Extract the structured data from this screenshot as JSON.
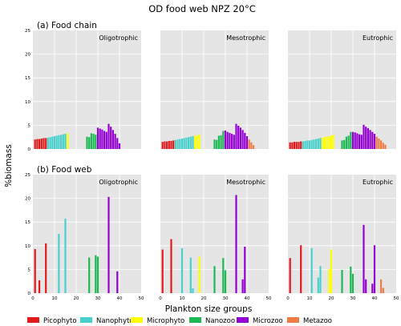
{
  "figure": {
    "title": "OD food web NPZ 20°C",
    "ylabel": "%biomass",
    "xlabel": "Plankton size groups"
  },
  "colors": {
    "Picophyto": "#e31a1c",
    "Nanophyto": "#48d1cc",
    "Microphyto": "#ffff00",
    "Nanozoo": "#1db954",
    "Microzoo": "#9400d3",
    "Metazoo": "#ef7b45"
  },
  "legend": [
    "Picophyto",
    "Nanophyto",
    "Microphyto",
    "Nanozoo",
    "Microzoo",
    "Metazoo"
  ],
  "rows": [
    {
      "label": "(a) Food chain",
      "show_x_ticks": false
    },
    {
      "label": "(b) Food web",
      "show_x_ticks": true
    }
  ],
  "chart_data": [
    {
      "type": "bar",
      "row": 0,
      "col": 0,
      "panel_title": "Oligotrophic",
      "xlim": [
        0,
        50
      ],
      "ylim": [
        0,
        25
      ],
      "yticks": [
        0,
        5,
        10,
        15,
        20,
        25
      ],
      "xticks": [
        0,
        10,
        20,
        30,
        40,
        50
      ],
      "series": [
        {
          "name": "Picophyto",
          "x": [
            1,
            2,
            3,
            4,
            5,
            6
          ],
          "values": [
            2.0,
            2.1,
            2.1,
            2.2,
            2.3,
            2.3
          ]
        },
        {
          "name": "Nanophyto",
          "x": [
            7,
            8,
            9,
            10,
            11,
            12,
            13,
            14,
            15
          ],
          "values": [
            2.4,
            2.5,
            2.6,
            2.7,
            2.8,
            2.9,
            3.0,
            3.1,
            3.2
          ]
        },
        {
          "name": "Microphyto",
          "x": [
            16
          ],
          "values": [
            3.3
          ]
        },
        {
          "name": "Nanozoo",
          "x": [
            25,
            26,
            27,
            28,
            29
          ],
          "values": [
            2.6,
            2.5,
            3.3,
            3.2,
            3.0
          ]
        },
        {
          "name": "Microzoo",
          "x": [
            30,
            31,
            32,
            33,
            34,
            35,
            36,
            37,
            38,
            39,
            40
          ],
          "values": [
            4.5,
            4.3,
            4.1,
            3.8,
            3.6,
            5.3,
            4.7,
            4.0,
            3.2,
            2.3,
            1.2
          ]
        },
        {
          "name": "Metazoo",
          "x": [],
          "values": []
        }
      ]
    },
    {
      "type": "bar",
      "row": 0,
      "col": 1,
      "panel_title": "Mesotrophic",
      "xlim": [
        0,
        50
      ],
      "ylim": [
        0,
        25
      ],
      "yticks": [
        0,
        5,
        10,
        15,
        20,
        25
      ],
      "xticks": [
        0,
        10,
        20,
        30,
        40,
        50
      ],
      "series": [
        {
          "name": "Picophyto",
          "x": [
            1,
            2,
            3,
            4,
            5,
            6
          ],
          "values": [
            1.5,
            1.6,
            1.6,
            1.7,
            1.7,
            1.8
          ]
        },
        {
          "name": "Nanophyto",
          "x": [
            7,
            8,
            9,
            10,
            11,
            12,
            13,
            14,
            15
          ],
          "values": [
            1.9,
            2.0,
            2.1,
            2.2,
            2.3,
            2.4,
            2.5,
            2.6,
            2.7
          ]
        },
        {
          "name": "Microphyto",
          "x": [
            16,
            17,
            18
          ],
          "values": [
            2.8,
            2.9,
            3.0
          ]
        },
        {
          "name": "Nanozoo",
          "x": [
            25,
            26,
            27,
            28,
            29
          ],
          "values": [
            2.0,
            1.9,
            2.8,
            2.9,
            3.8
          ]
        },
        {
          "name": "Microzoo",
          "x": [
            30,
            31,
            32,
            33,
            34,
            35,
            36,
            37,
            38,
            39,
            40
          ],
          "values": [
            3.9,
            3.6,
            3.4,
            3.2,
            3.0,
            5.3,
            4.9,
            4.5,
            4.0,
            3.4,
            2.7
          ]
        },
        {
          "name": "Metazoo",
          "x": [
            41,
            42,
            43
          ],
          "values": [
            2.0,
            1.4,
            0.8
          ]
        }
      ]
    },
    {
      "type": "bar",
      "row": 0,
      "col": 2,
      "panel_title": "Eutrophic",
      "xlim": [
        0,
        50
      ],
      "ylim": [
        0,
        25
      ],
      "yticks": [
        0,
        5,
        10,
        15,
        20,
        25
      ],
      "xticks": [
        0,
        10,
        20,
        30,
        40,
        50
      ],
      "series": [
        {
          "name": "Picophyto",
          "x": [
            1,
            2,
            3,
            4,
            5,
            6
          ],
          "values": [
            1.4,
            1.4,
            1.5,
            1.5,
            1.5,
            1.6
          ]
        },
        {
          "name": "Nanophyto",
          "x": [
            7,
            8,
            9,
            10,
            11,
            12,
            13,
            14,
            15
          ],
          "values": [
            1.6,
            1.7,
            1.8,
            1.8,
            1.9,
            2.0,
            2.1,
            2.2,
            2.3
          ]
        },
        {
          "name": "Microphyto",
          "x": [
            16,
            17,
            18,
            19,
            20,
            21
          ],
          "values": [
            2.4,
            2.5,
            2.6,
            2.7,
            2.8,
            3.0
          ]
        },
        {
          "name": "Nanozoo",
          "x": [
            25,
            26,
            27,
            28,
            29
          ],
          "values": [
            1.8,
            1.9,
            2.6,
            2.8,
            3.6
          ]
        },
        {
          "name": "Microzoo",
          "x": [
            30,
            31,
            32,
            33,
            34,
            35,
            36,
            37,
            38,
            39,
            40
          ],
          "values": [
            3.6,
            3.5,
            3.3,
            3.1,
            3.0,
            5.1,
            4.7,
            4.4,
            4.0,
            3.6,
            3.2
          ]
        },
        {
          "name": "Metazoo",
          "x": [
            41,
            42,
            43,
            44,
            45
          ],
          "values": [
            2.6,
            2.2,
            1.8,
            1.3,
            0.9
          ]
        }
      ]
    },
    {
      "type": "bar",
      "row": 1,
      "col": 0,
      "panel_title": "Oligotrophic",
      "xlim": [
        0,
        50
      ],
      "ylim": [
        0,
        25
      ],
      "yticks": [
        0,
        5,
        10,
        15,
        20,
        25
      ],
      "xticks": [
        0,
        10,
        20,
        30,
        40,
        50
      ],
      "series": [
        {
          "name": "Picophyto",
          "x": [
            1,
            3,
            6
          ],
          "values": [
            9.3,
            2.7,
            10.5
          ]
        },
        {
          "name": "Nanophyto",
          "x": [
            12,
            15
          ],
          "values": [
            12.5,
            15.7
          ]
        },
        {
          "name": "Microphyto",
          "x": [],
          "values": []
        },
        {
          "name": "Nanozoo",
          "x": [
            26,
            29,
            30
          ],
          "values": [
            7.5,
            8.0,
            7.7
          ]
        },
        {
          "name": "Microzoo",
          "x": [
            35,
            39
          ],
          "values": [
            20.3,
            4.6
          ]
        },
        {
          "name": "Metazoo",
          "x": [],
          "values": []
        }
      ]
    },
    {
      "type": "bar",
      "row": 1,
      "col": 1,
      "panel_title": "Mesotrophic",
      "xlim": [
        0,
        50
      ],
      "ylim": [
        0,
        25
      ],
      "yticks": [
        0,
        5,
        10,
        15,
        20,
        25
      ],
      "xticks": [
        0,
        10,
        20,
        30,
        40,
        50
      ],
      "series": [
        {
          "name": "Picophyto",
          "x": [
            1,
            5
          ],
          "values": [
            9.2,
            11.4
          ]
        },
        {
          "name": "Nanophyto",
          "x": [
            10,
            14,
            15
          ],
          "values": [
            9.5,
            7.5,
            1.0
          ]
        },
        {
          "name": "Microphyto",
          "x": [
            18
          ],
          "values": [
            7.7
          ]
        },
        {
          "name": "Nanozoo",
          "x": [
            25,
            29,
            30
          ],
          "values": [
            5.7,
            7.4,
            4.8
          ]
        },
        {
          "name": "Microzoo",
          "x": [
            35,
            38,
            39
          ],
          "values": [
            20.7,
            2.9,
            9.8
          ]
        },
        {
          "name": "Metazoo",
          "x": [],
          "values": []
        }
      ]
    },
    {
      "type": "bar",
      "row": 1,
      "col": 2,
      "panel_title": "Eutrophic",
      "xlim": [
        0,
        50
      ],
      "ylim": [
        0,
        25
      ],
      "yticks": [
        0,
        5,
        10,
        15,
        20,
        25
      ],
      "xticks": [
        0,
        10,
        20,
        30,
        40,
        50
      ],
      "series": [
        {
          "name": "Picophyto",
          "x": [
            1,
            6
          ],
          "values": [
            7.4,
            10.1
          ]
        },
        {
          "name": "Nanophyto",
          "x": [
            11,
            14,
            15
          ],
          "values": [
            9.5,
            3.3,
            5.7
          ]
        },
        {
          "name": "Microphyto",
          "x": [
            19,
            20
          ],
          "values": [
            5.1,
            9.2
          ]
        },
        {
          "name": "Nanozoo",
          "x": [
            25,
            29,
            30
          ],
          "values": [
            4.9,
            5.6,
            4.1
          ]
        },
        {
          "name": "Microzoo",
          "x": [
            35,
            36,
            39,
            40
          ],
          "values": [
            14.4,
            2.9,
            2.0,
            10.1
          ]
        },
        {
          "name": "Metazoo",
          "x": [
            43,
            44
          ],
          "values": [
            2.9,
            1.1
          ]
        }
      ]
    }
  ]
}
